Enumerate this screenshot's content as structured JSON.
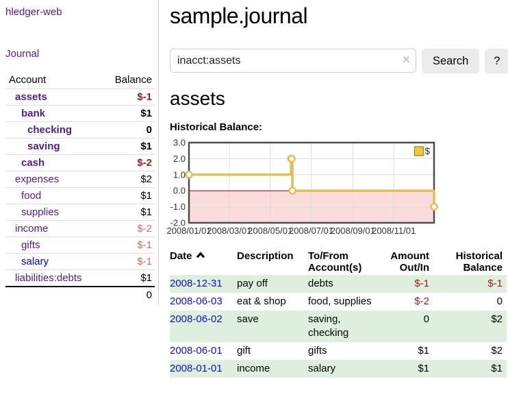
{
  "app": {
    "brand": "hledger-web",
    "nav_journal": "Journal"
  },
  "sidebar": {
    "table": {
      "account_header": "Account",
      "balance_header": "Balance",
      "rows": [
        {
          "account": "assets",
          "balance": "$-1"
        },
        {
          "account": "bank",
          "balance": "$1"
        },
        {
          "account": "checking",
          "balance": "0"
        },
        {
          "account": "saving",
          "balance": "$1"
        },
        {
          "account": "cash",
          "balance": "$-2"
        },
        {
          "account": "expenses",
          "balance": "$2"
        },
        {
          "account": "food",
          "balance": "$1"
        },
        {
          "account": "supplies",
          "balance": "$1"
        },
        {
          "account": "income",
          "balance": "$-2"
        },
        {
          "account": "gifts",
          "balance": "$-1"
        },
        {
          "account": "salary",
          "balance": "$-1"
        },
        {
          "account": "liabilities:debts",
          "balance": "$1"
        }
      ],
      "total": "0"
    }
  },
  "main": {
    "title": "sample.journal",
    "search": {
      "value": "inacct:assets",
      "clear_icon": "×",
      "button": "Search",
      "help": "?"
    },
    "account_title": "assets",
    "chart_title": "Historical Balance:"
  },
  "chart_data": {
    "type": "line",
    "title": "Historical Balance:",
    "step": true,
    "series": [
      {
        "name": "$",
        "points": [
          [
            "2008-01-01",
            1
          ],
          [
            "2008-06-01",
            2
          ],
          [
            "2008-06-02",
            2
          ],
          [
            "2008-06-03",
            0
          ],
          [
            "2008-12-31",
            -1
          ]
        ]
      }
    ],
    "xlim": [
      "2008-01-01",
      "2008-12-31"
    ],
    "ylim": [
      -2,
      3
    ],
    "y_ticks": [
      "3.0",
      "2.0",
      "1.0",
      "0.0",
      "-1.0",
      "-2.0"
    ],
    "y_gridlines": [
      2,
      1,
      -1
    ],
    "x_ticks": [
      {
        "date": "2008-01-01",
        "label": "2008/01/01"
      },
      {
        "date": "2008-03-01",
        "label": "2008/03/01"
      },
      {
        "date": "2008-05-01",
        "label": "2008/05/01"
      },
      {
        "date": "2008-07-01",
        "label": "2008/07/01"
      },
      {
        "date": "2008-09-01",
        "label": "2008/09/01"
      },
      {
        "date": "2008-11-01",
        "label": "2008/11/01"
      }
    ],
    "legend": {
      "label": "$",
      "position": "top-right"
    },
    "colors": {
      "line": "#e3c052",
      "negative_region": "#fbdcdc",
      "zero_line": "#900000",
      "border": "#4d4d4d",
      "grid": "#dddddd",
      "legend_fill": "#ecc83f",
      "legend_border": "#b39128",
      "tick_text": "#333333"
    }
  },
  "register": {
    "headers": {
      "date": "Date",
      "description": "Description",
      "accounts_line1": "To/From",
      "accounts_line2": "Account(s)",
      "amount_line1": "Amount",
      "amount_line2": "Out/In",
      "balance_line1": "Historical",
      "balance_line2": "Balance"
    },
    "rows": [
      {
        "date": "2008-12-31",
        "description": "pay off",
        "accounts": "debts",
        "amount": "$-1",
        "balance": "$-1"
      },
      {
        "date": "2008-06-03",
        "description": "eat & shop",
        "accounts": "food, supplies",
        "amount": "$-2",
        "balance": "0"
      },
      {
        "date": "2008-06-02",
        "description": "save",
        "accounts": "saving, checking",
        "amount": "0",
        "balance": "$2"
      },
      {
        "date": "2008-06-01",
        "description": "gift",
        "accounts": "gifts",
        "amount": "$1",
        "balance": "$2"
      },
      {
        "date": "2008-01-01",
        "description": "income",
        "accounts": "salary",
        "amount": "$1",
        "balance": "$1"
      }
    ]
  }
}
